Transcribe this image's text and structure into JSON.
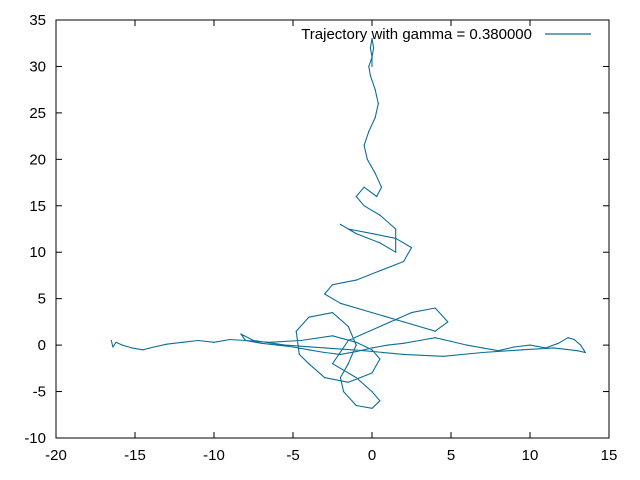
{
  "chart_data": {
    "type": "line",
    "title": "",
    "xlabel": "",
    "ylabel": "",
    "xlim": [
      -20,
      15
    ],
    "ylim": [
      -10,
      35
    ],
    "x_ticks": [
      -20,
      -15,
      -10,
      -5,
      0,
      5,
      10,
      15
    ],
    "y_ticks": [
      -10,
      -5,
      0,
      5,
      10,
      15,
      20,
      25,
      30,
      35
    ],
    "grid": false,
    "legend_position": "top-right",
    "series": [
      {
        "name": "Trajectory with gamma = 0.380000",
        "color": "#0e6e96",
        "x": [
          -16.5,
          -16.4,
          -16.2,
          -15.8,
          -15.2,
          -14.5,
          -13.8,
          -13.0,
          -12.0,
          -11.0,
          -10.0,
          -9.0,
          -8.0,
          -7.0,
          -6.0,
          -5.0,
          -4.0,
          -3.0,
          -2.0,
          -1.0,
          0.0,
          1.0,
          2.0,
          3.0,
          4.0,
          5.0,
          6.0,
          7.0,
          8.0,
          9.0,
          10.0,
          11.0,
          11.8,
          12.4,
          12.8,
          13.2,
          13.4,
          13.5,
          13.0,
          11.5,
          9.5,
          7.0,
          4.5,
          2.0,
          -0.5,
          -3.0,
          -5.5,
          -7.5,
          -8.3,
          -8.0,
          -6.5,
          -4.5,
          -2.5,
          -1.0,
          0.0,
          0.5,
          0.0,
          -1.5,
          -3.0,
          -4.0,
          -4.6,
          -4.8,
          -4.0,
          -2.5,
          -1.5,
          -1.0,
          -1.5,
          -2.0,
          -1.8,
          -1.0,
          0.0,
          0.5,
          0.0,
          -1.0,
          -2.5,
          -1.5,
          0.5,
          2.5,
          4.0,
          4.8,
          4.0,
          2.0,
          0.0,
          -2.0,
          -3.0,
          -2.5,
          -1.0,
          0.5,
          2.0,
          2.5,
          1.5,
          0.0,
          -1.5,
          -2.0,
          -1.0,
          0.5,
          1.5,
          1.5,
          0.5,
          -0.5,
          -1.0,
          -0.5,
          0.3,
          0.6,
          0.2,
          -0.3,
          -0.5,
          -0.2,
          0.2,
          0.4,
          0.2,
          -0.1,
          -0.2,
          0.0,
          0.1,
          0.0,
          -0.1,
          0.0,
          0.0
        ],
        "y": [
          0.5,
          -0.2,
          0.3,
          0.0,
          -0.3,
          -0.5,
          -0.2,
          0.1,
          0.3,
          0.5,
          0.3,
          0.6,
          0.5,
          0.2,
          0.0,
          -0.2,
          -0.5,
          -0.8,
          -1.0,
          -0.7,
          -0.3,
          0.0,
          0.2,
          0.5,
          0.8,
          0.4,
          0.0,
          -0.3,
          -0.6,
          -0.2,
          0.0,
          -0.3,
          0.2,
          0.8,
          0.6,
          0.0,
          -0.5,
          -0.8,
          -0.6,
          -0.3,
          -0.5,
          -0.8,
          -1.2,
          -1.0,
          -0.6,
          -0.3,
          0.0,
          0.5,
          1.2,
          0.5,
          0.3,
          0.5,
          1.0,
          0.3,
          -0.5,
          -1.5,
          -3.0,
          -4.0,
          -3.5,
          -2.0,
          -1.0,
          1.5,
          3.0,
          3.5,
          2.0,
          0.0,
          -2.0,
          -3.5,
          -5.0,
          -6.5,
          -6.8,
          -6.0,
          -5.0,
          -3.5,
          -2.0,
          0.5,
          2.0,
          3.5,
          4.0,
          2.5,
          1.5,
          2.5,
          3.5,
          4.5,
          5.5,
          6.5,
          7.0,
          8.0,
          9.0,
          10.5,
          11.5,
          12.0,
          12.5,
          13.0,
          12.0,
          11.0,
          10.0,
          12.5,
          14.0,
          15.0,
          16.0,
          17.0,
          16.0,
          17.0,
          18.5,
          20.0,
          21.5,
          23.0,
          24.5,
          26.0,
          27.5,
          29.0,
          30.0,
          31.0,
          32.0,
          33.0,
          32.0,
          31.0,
          30.0
        ]
      }
    ]
  }
}
